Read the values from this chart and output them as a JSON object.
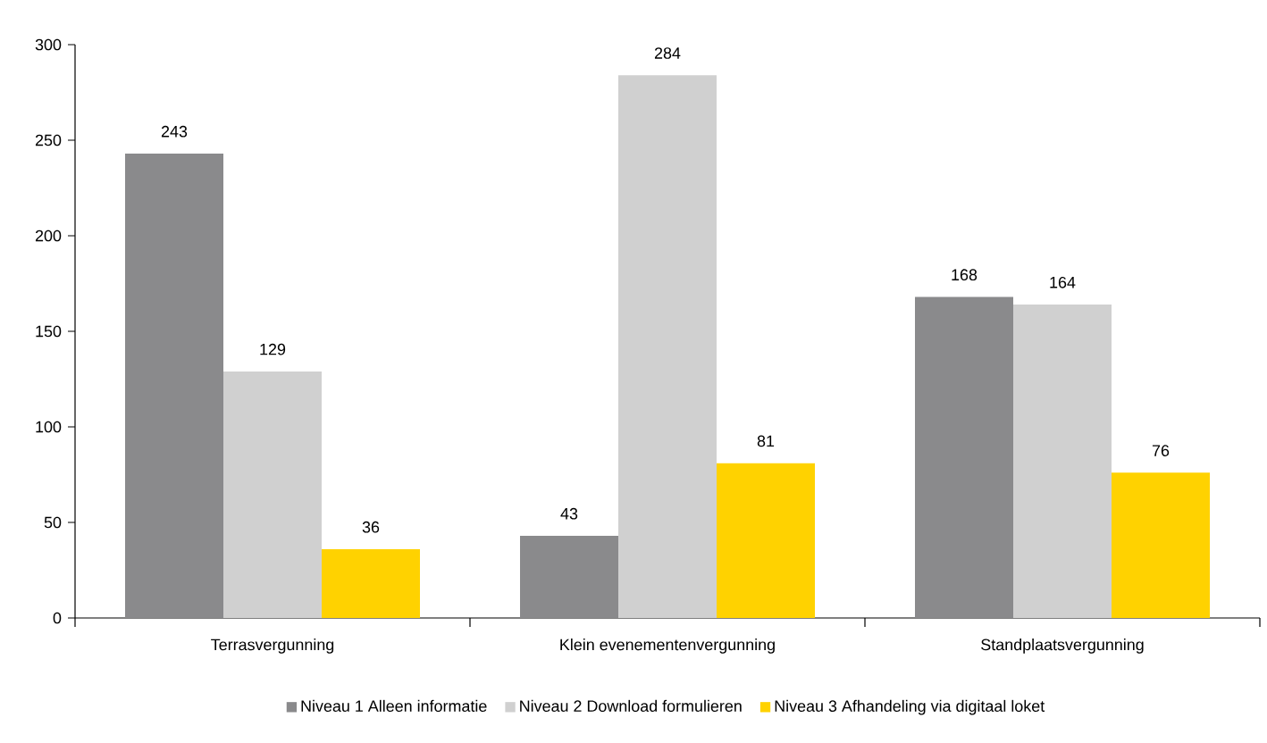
{
  "chart_data": {
    "type": "bar",
    "categories": [
      "Terrasvergunning",
      "Klein evenementenvergunning",
      "Standplaatsvergunning"
    ],
    "series": [
      {
        "name": "Niveau 1 Alleen informatie",
        "color": "#8a8a8c",
        "values": [
          243,
          43,
          168
        ]
      },
      {
        "name": "Niveau 2 Download formulieren",
        "color": "#d0d0d0",
        "values": [
          129,
          284,
          164
        ]
      },
      {
        "name": "Niveau 3 Afhandeling via digitaal loket",
        "color": "#ffd200",
        "values": [
          36,
          81,
          76
        ]
      }
    ],
    "ylim": [
      0,
      300
    ],
    "yticks": [
      0,
      50,
      100,
      150,
      200,
      250,
      300
    ],
    "data_labels": true,
    "legend": "bottom",
    "grid": false
  }
}
